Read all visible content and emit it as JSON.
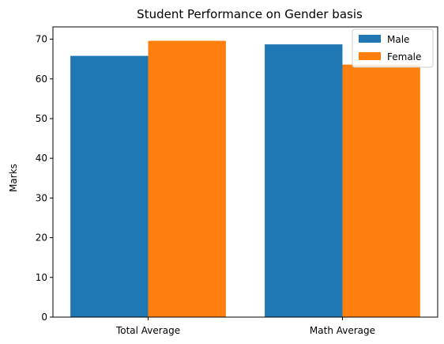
{
  "chart_data": {
    "type": "bar",
    "title": "Student Performance on Gender basis",
    "xlabel": "",
    "ylabel": "Marks",
    "categories": [
      "Total Average",
      "Math Average"
    ],
    "series": [
      {
        "name": "Male",
        "values": [
          65.8,
          68.7
        ],
        "color": "#1f77b4"
      },
      {
        "name": "Female",
        "values": [
          69.6,
          63.6
        ],
        "color": "#ff7f0e"
      }
    ],
    "ylim": [
      0,
      73.1
    ],
    "yticks": [
      0,
      10,
      20,
      30,
      40,
      50,
      60,
      70
    ],
    "grid": false,
    "legend_position": "top-right"
  }
}
